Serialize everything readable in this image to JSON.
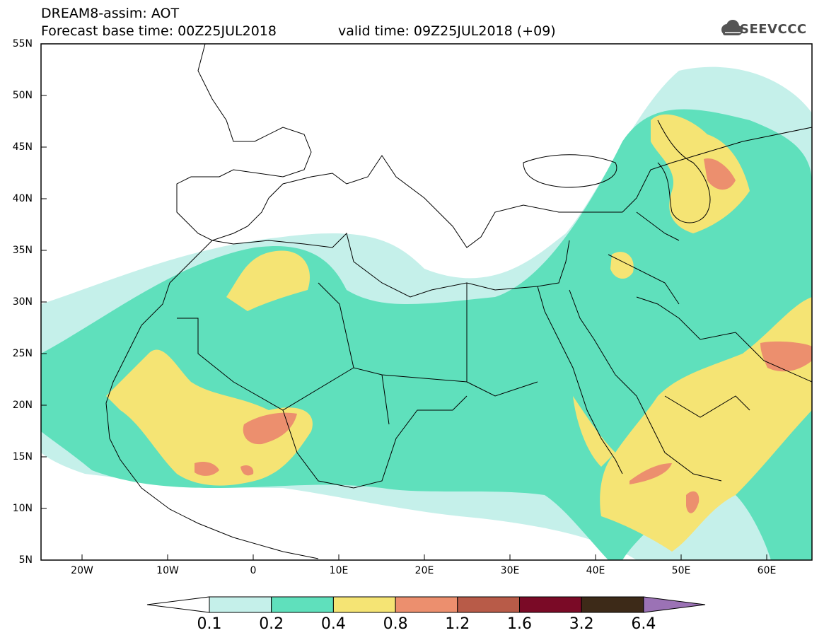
{
  "header": {
    "title": "DREAM8-assim: AOT",
    "base_time": "Forecast base time: 00Z25JUL2018",
    "valid_time": "valid time: 09Z25JUL2018 (+09)"
  },
  "logo": {
    "text": "SEEVCCC",
    "icon": "cloud-logo-icon"
  },
  "map": {
    "lat_labels": [
      "55N",
      "50N",
      "45N",
      "40N",
      "35N",
      "30N",
      "25N",
      "20N",
      "15N",
      "10N",
      "5N"
    ],
    "lon_labels": [
      "20W",
      "10W",
      "0",
      "10E",
      "20E",
      "30E",
      "40E",
      "50E",
      "60E"
    ],
    "colors": {
      "c01": "#c5f0ea",
      "c02": "#5fe0bc",
      "c04": "#f5e474",
      "c08": "#ec8f6e",
      "c12": "#b85b48",
      "c16": "#7a0a26",
      "c32": "#3d2a18",
      "c64": "#9b72b5",
      "border": "#000000"
    }
  },
  "colorbar": {
    "labels": [
      "0.1",
      "0.2",
      "0.4",
      "0.8",
      "1.2",
      "1.6",
      "3.2",
      "6.4"
    ]
  }
}
